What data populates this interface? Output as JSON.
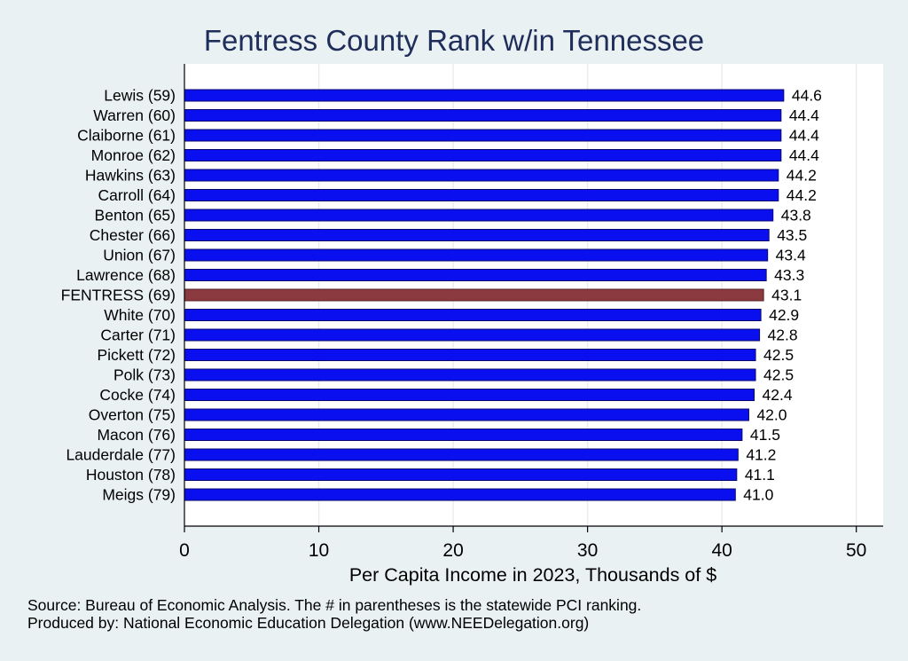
{
  "chart_data": {
    "type": "bar",
    "orientation": "horizontal",
    "title": "Fentress County Rank w/in Tennessee",
    "xlabel": "Per Capita Income in 2023, Thousands of $",
    "ylabel": "",
    "xlim": [
      0,
      52
    ],
    "xticks": [
      0,
      10,
      20,
      30,
      40,
      50
    ],
    "grid": true,
    "categories": [
      "Lewis (59)",
      "Warren (60)",
      "Claiborne (61)",
      "Monroe (62)",
      "Hawkins (63)",
      "Carroll (64)",
      "Benton (65)",
      "Chester (66)",
      "Union (67)",
      "Lawrence (68)",
      "FENTRESS (69)",
      "White (70)",
      "Carter (71)",
      "Pickett (72)",
      "Polk (73)",
      "Cocke (74)",
      "Overton (75)",
      "Macon (76)",
      "Lauderdale (77)",
      "Houston (78)",
      "Meigs (79)"
    ],
    "values": [
      44.6,
      44.4,
      44.4,
      44.4,
      44.2,
      44.2,
      43.8,
      43.5,
      43.4,
      43.3,
      43.1,
      42.9,
      42.8,
      42.5,
      42.5,
      42.4,
      42.0,
      41.5,
      41.2,
      41.1,
      41.0
    ],
    "value_labels": [
      "44.6",
      "44.4",
      "44.4",
      "44.4",
      "44.2",
      "44.2",
      "43.8",
      "43.5",
      "43.4",
      "43.3",
      "43.1",
      "42.9",
      "42.8",
      "42.5",
      "42.5",
      "42.4",
      "42.0",
      "41.5",
      "41.2",
      "41.1",
      "41.0"
    ],
    "highlight_category": "FENTRESS (69)",
    "colors": {
      "bar": "#0a0ff0",
      "bar_edge": "#0a0a6e",
      "highlight": "#8b3a3f",
      "highlight_edge": "#5a1f24",
      "plot_background": "#ffffff",
      "page_background": "#eaf1f3",
      "title": "#1e2d5a"
    }
  },
  "notes": {
    "source": "Source: Bureau of Economic Analysis. The # in parentheses is the statewide PCI ranking.",
    "producer": "Produced by: National Economic Education Delegation (www.NEEDelegation.org)"
  }
}
